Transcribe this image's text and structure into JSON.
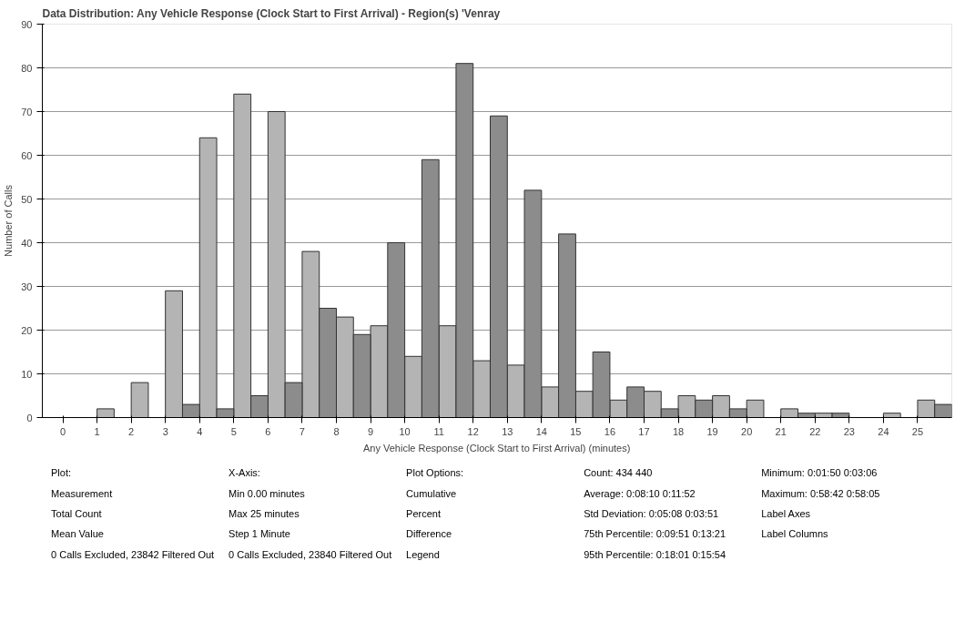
{
  "chart_data": {
    "type": "histogram",
    "title": "Data Distribution: Any Vehicle Response (Clock Start to First Arrival) - Region(s) 'Venray",
    "xlabel": "Any Vehicle Response (Clock Start to First Arrival) (minutes)",
    "ylabel": "Number of Calls",
    "bins": [
      0,
      1,
      2,
      3,
      4,
      5,
      6,
      7,
      8,
      9,
      10,
      11,
      12,
      13,
      14,
      15,
      16,
      17,
      18,
      19,
      20,
      21,
      22,
      23,
      24,
      25,
      26
    ],
    "series": [
      {
        "color": "#b4b4b4",
        "values": [
          0,
          2,
          8,
          29,
          64,
          74,
          70,
          38,
          23,
          21,
          14,
          21,
          13,
          12,
          7,
          6,
          4,
          6,
          5,
          5,
          4,
          2,
          1,
          0,
          1,
          4
        ]
      },
      {
        "color": "#8c8c8c",
        "values": [
          0,
          0,
          0,
          3,
          2,
          5,
          8,
          25,
          19,
          40,
          59,
          81,
          69,
          52,
          42,
          15,
          7,
          2,
          4,
          2,
          0,
          1,
          1,
          0,
          0,
          3
        ]
      }
    ],
    "xlim": [
      -0.6,
      26
    ],
    "ylim": [
      0,
      90
    ],
    "xticks": [
      0,
      1,
      2,
      3,
      4,
      5,
      6,
      7,
      8,
      9,
      10,
      11,
      12,
      13,
      14,
      15,
      16,
      17,
      18,
      19,
      20,
      21,
      22,
      23,
      24,
      25
    ],
    "yticks": [
      0,
      10,
      20,
      30,
      40,
      50,
      60,
      70,
      80,
      90
    ],
    "grid": "y",
    "annotations": [
      "Plot:",
      "Measurement",
      "Total Count",
      "Mean Value",
      "0 Calls Excluded, 23842 Filtered Out",
      "X-Axis:",
      "Min 0.00 minutes",
      "Max 25 minutes",
      "Step 1 Minute",
      "0 Calls Excluded, 23840 Filtered Out",
      "Plot Options:",
      "Cumulative",
      "Percent",
      "Difference",
      "Legend",
      "Count: 434 440",
      "Average: 0:08:10 0:11:52",
      "Std Deviation: 0:05:08 0:03:51",
      "75th Percentile: 0:09:51 0:13:21",
      "95th Percentile: 0:18:01 0:15:54",
      "Minimum: 0:01:50 0:03:06",
      "Maximum: 0:58:42 0:58:05",
      "Label Axes",
      "Label Columns"
    ]
  }
}
